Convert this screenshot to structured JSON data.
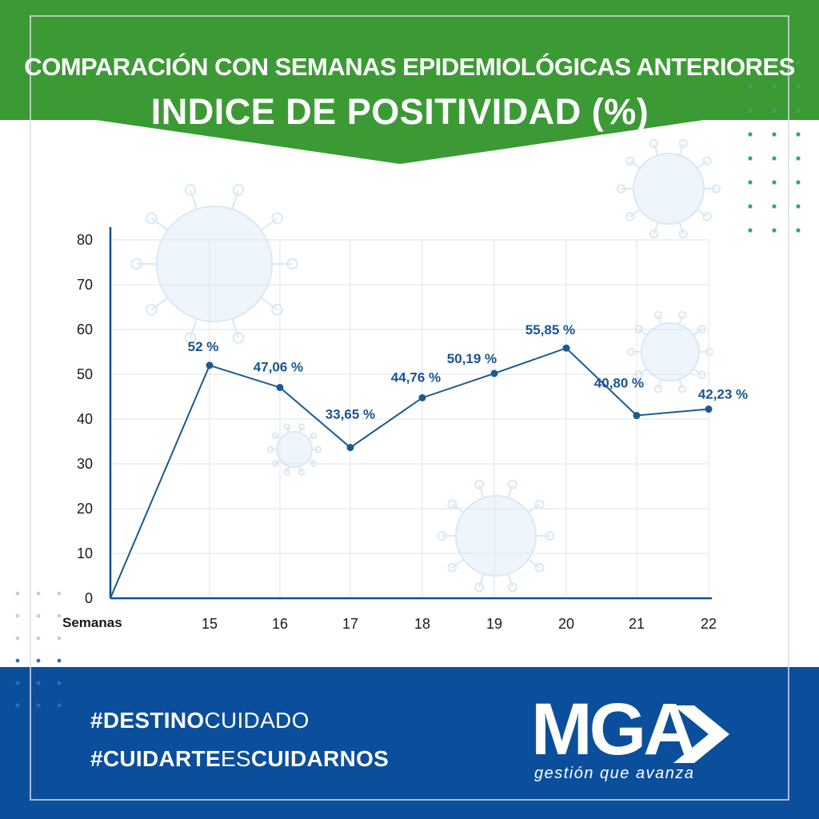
{
  "header": {
    "supertitle": "COMPARACIÓN CON SEMANAS EPIDEMIOLÓGICAS ANTERIORES",
    "title": "INDICE DE POSITIVIDAD (%)"
  },
  "footer": {
    "hashtag1_bold": "#DESTINO",
    "hashtag1_light": "CUIDADO",
    "hashtag2_part1": "#CUIDARTE",
    "hashtag2_part2": "ES",
    "hashtag2_part3": "CUIDARNOS",
    "brand": "MGA",
    "tagline": "gestión que avanza"
  },
  "colors": {
    "header_green": "#3c9a35",
    "footer_blue": "#0b4f9c",
    "series_blue": "#1b5a8e",
    "label_blue": "#1a5490",
    "dot_green": "#3aa860"
  },
  "icons": [
    "virus-watermark-icon",
    "mga-arrow-logo-icon"
  ],
  "chart_data": {
    "type": "line",
    "xlabel": "Semanas",
    "ylabel": "",
    "ylim": [
      0,
      80
    ],
    "yticks": [
      0,
      10,
      20,
      30,
      40,
      50,
      60,
      70,
      80
    ],
    "categories": [
      "15",
      "16",
      "17",
      "18",
      "19",
      "20",
      "21",
      "22"
    ],
    "series": [
      {
        "values": [
          52,
          47.06,
          33.65,
          44.76,
          50.19,
          55.85,
          40.8,
          42.23
        ],
        "labels": [
          "52 %",
          "47,06 %",
          "33,65 %",
          "44,76 %",
          "50,19 %",
          "55,85 %",
          "40,80 %",
          "42,23 %"
        ]
      }
    ],
    "origin_point": [
      0,
      0
    ],
    "grid": true,
    "legend": "none"
  }
}
